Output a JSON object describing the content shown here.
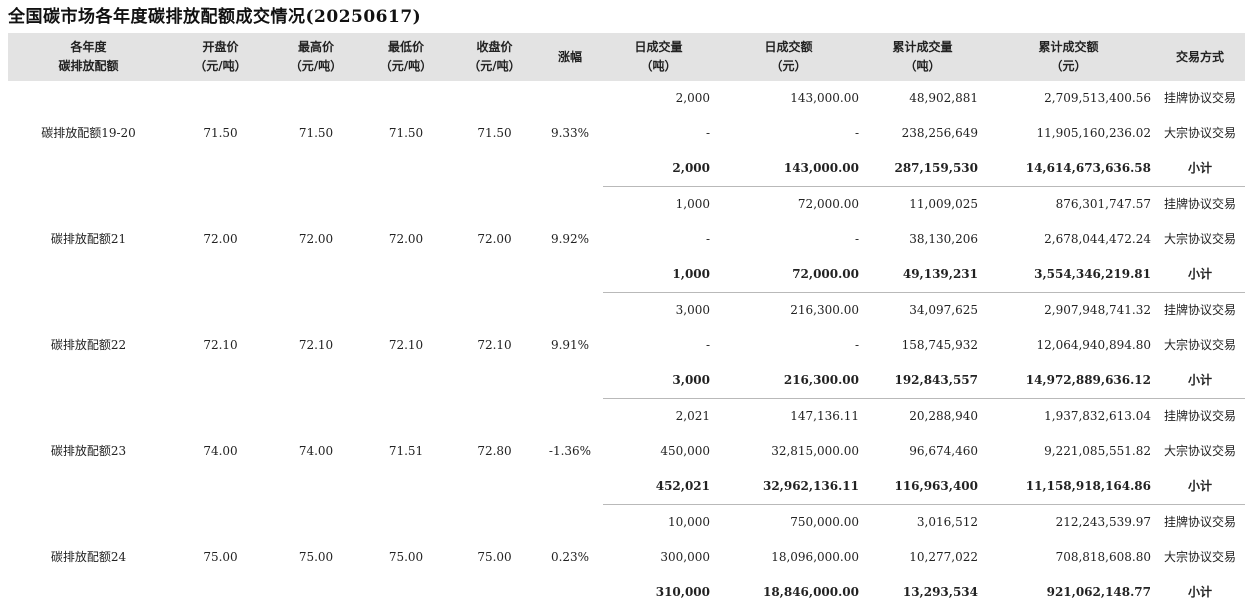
{
  "title": "全国碳市场各年度碳排放配额成交情况(20250617)",
  "headers": [
    {
      "l1": "各年度",
      "l2": "碳排放配额"
    },
    {
      "l1": "开盘价",
      "l2": "（元/吨）"
    },
    {
      "l1": "最高价",
      "l2": "（元/吨）"
    },
    {
      "l1": "最低价",
      "l2": "（元/吨）"
    },
    {
      "l1": "收盘价",
      "l2": "（元/吨）"
    },
    {
      "l1": "涨幅",
      "l2": ""
    },
    {
      "l1": "日成交量",
      "l2": "（吨）"
    },
    {
      "l1": "日成交额",
      "l2": "（元）"
    },
    {
      "l1": "累计成交量",
      "l2": "（吨）"
    },
    {
      "l1": "累计成交额",
      "l2": "（元）"
    },
    {
      "l1": "交易方式",
      "l2": ""
    }
  ],
  "groups": [
    {
      "name": "碳排放配额19-20",
      "open": "71.50",
      "high": "71.50",
      "low": "71.50",
      "close": "71.50",
      "change": "9.33%",
      "rows": [
        {
          "vol": "2,000",
          "amt": "143,000.00",
          "cvol": "48,902,881",
          "camt": "2,709,513,400.56",
          "method": "挂牌协议交易"
        },
        {
          "vol": "-",
          "amt": "-",
          "cvol": "238,256,649",
          "camt": "11,905,160,236.02",
          "method": "大宗协议交易"
        },
        {
          "vol": "2,000",
          "amt": "143,000.00",
          "cvol": "287,159,530",
          "camt": "14,614,673,636.58",
          "method": "小计"
        }
      ]
    },
    {
      "name": "碳排放配额21",
      "open": "72.00",
      "high": "72.00",
      "low": "72.00",
      "close": "72.00",
      "change": "9.92%",
      "rows": [
        {
          "vol": "1,000",
          "amt": "72,000.00",
          "cvol": "11,009,025",
          "camt": "876,301,747.57",
          "method": "挂牌协议交易"
        },
        {
          "vol": "-",
          "amt": "-",
          "cvol": "38,130,206",
          "camt": "2,678,044,472.24",
          "method": "大宗协议交易"
        },
        {
          "vol": "1,000",
          "amt": "72,000.00",
          "cvol": "49,139,231",
          "camt": "3,554,346,219.81",
          "method": "小计"
        }
      ]
    },
    {
      "name": "碳排放配额22",
      "open": "72.10",
      "high": "72.10",
      "low": "72.10",
      "close": "72.10",
      "change": "9.91%",
      "rows": [
        {
          "vol": "3,000",
          "amt": "216,300.00",
          "cvol": "34,097,625",
          "camt": "2,907,948,741.32",
          "method": "挂牌协议交易"
        },
        {
          "vol": "-",
          "amt": "-",
          "cvol": "158,745,932",
          "camt": "12,064,940,894.80",
          "method": "大宗协议交易"
        },
        {
          "vol": "3,000",
          "amt": "216,300.00",
          "cvol": "192,843,557",
          "camt": "14,972,889,636.12",
          "method": "小计"
        }
      ]
    },
    {
      "name": "碳排放配额23",
      "open": "74.00",
      "high": "74.00",
      "low": "71.51",
      "close": "72.80",
      "change": "-1.36%",
      "rows": [
        {
          "vol": "2,021",
          "amt": "147,136.11",
          "cvol": "20,288,940",
          "camt": "1,937,832,613.04",
          "method": "挂牌协议交易"
        },
        {
          "vol": "450,000",
          "amt": "32,815,000.00",
          "cvol": "96,674,460",
          "camt": "9,221,085,551.82",
          "method": "大宗协议交易"
        },
        {
          "vol": "452,021",
          "amt": "32,962,136.11",
          "cvol": "116,963,400",
          "camt": "11,158,918,164.86",
          "method": "小计"
        }
      ]
    },
    {
      "name": "碳排放配额24",
      "open": "75.00",
      "high": "75.00",
      "low": "75.00",
      "close": "75.00",
      "change": "0.23%",
      "rows": [
        {
          "vol": "10,000",
          "amt": "750,000.00",
          "cvol": "3,016,512",
          "camt": "212,243,539.97",
          "method": "挂牌协议交易"
        },
        {
          "vol": "300,000",
          "amt": "18,096,000.00",
          "cvol": "10,277,022",
          "camt": "708,818,608.80",
          "method": "大宗协议交易"
        },
        {
          "vol": "310,000",
          "amt": "18,846,000.00",
          "cvol": "13,293,534",
          "camt": "921,062,148.77",
          "method": "小计"
        }
      ]
    }
  ]
}
